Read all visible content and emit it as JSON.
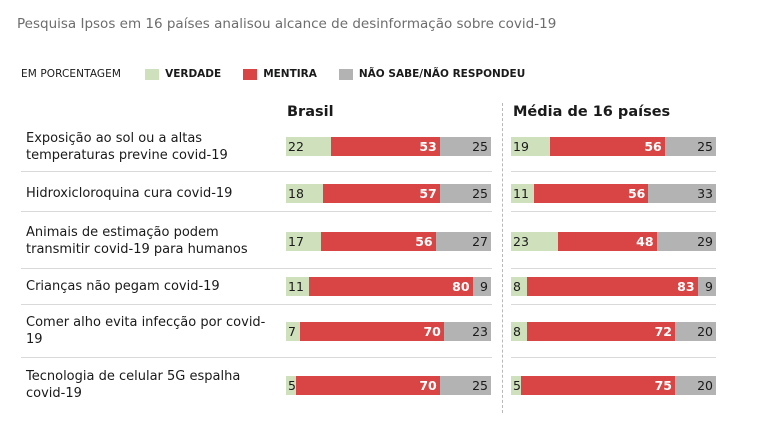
{
  "header": {
    "subtitle": "Pesquisa Ipsos em 16 países analisou alcance de desinformação sobre covid-19"
  },
  "legend": {
    "unit": "EM PORCENTAGEM",
    "items": [
      {
        "label": "VERDADE",
        "color": "#cfe0bd"
      },
      {
        "label": "MENTIRA",
        "color": "#d94545"
      },
      {
        "label": "NÃO SABE/NÃO RESPONDEU",
        "color": "#b3b3b3"
      }
    ]
  },
  "chart_data": {
    "type": "bar",
    "stacked": true,
    "unit": "EM PORCENTAGEM",
    "categories": [
      "Exposição ao sol ou a altas temperaturas previne covid-19",
      "Hidroxicloroquina cura covid-19",
      "Animais de estimação podem transmitir covid-19 para humanos",
      "Crianças não pegam covid-19",
      "Comer alho evita infecção por covid-19",
      "Tecnologia de celular 5G espalha covid-19"
    ],
    "panels": [
      {
        "title": "Brasil",
        "series": [
          {
            "name": "VERDADE",
            "values": [
              22,
              18,
              17,
              11,
              7,
              5
            ]
          },
          {
            "name": "MENTIRA",
            "values": [
              53,
              57,
              56,
              80,
              70,
              70
            ]
          },
          {
            "name": "NÃO SABE/NÃO RESPONDEU",
            "values": [
              25,
              25,
              27,
              9,
              23,
              25
            ]
          }
        ]
      },
      {
        "title": "Média de 16 países",
        "series": [
          {
            "name": "VERDADE",
            "values": [
              19,
              11,
              23,
              8,
              8,
              5
            ]
          },
          {
            "name": "MENTIRA",
            "values": [
              56,
              56,
              48,
              83,
              72,
              75
            ]
          },
          {
            "name": "NÃO SABE/NÃO RESPONDEU",
            "values": [
              25,
              33,
              29,
              9,
              20,
              20
            ]
          }
        ]
      }
    ],
    "colors": {
      "VERDADE": "#cfe0bd",
      "MENTIRA": "#d94545",
      "NÃO SABE/NÃO RESPONDEU": "#b3b3b3"
    }
  }
}
